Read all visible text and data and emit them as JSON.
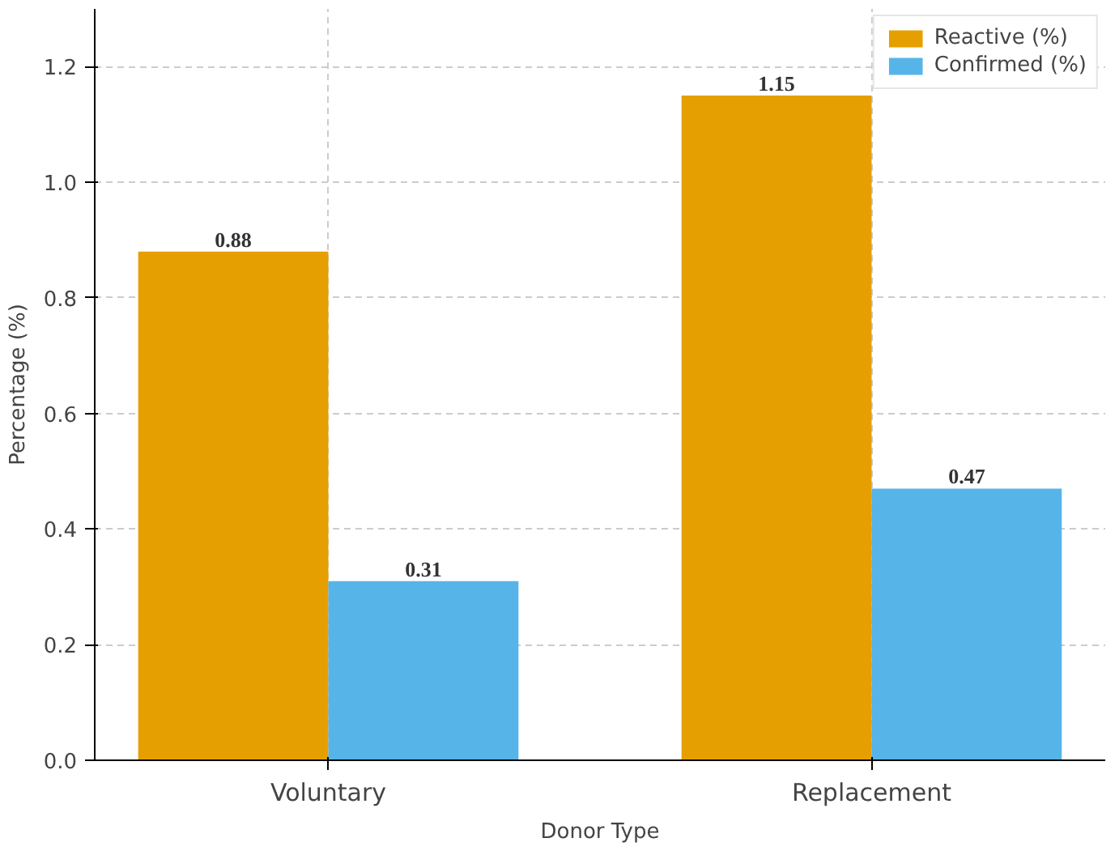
{
  "chart_data": {
    "type": "bar",
    "xlabel": "Donor Type",
    "ylabel": "Percentage (%)",
    "categories": [
      "Voluntary",
      "Replacement"
    ],
    "series": [
      {
        "name": "Reactive (%)",
        "color": "#e69f00",
        "values": [
          0.88,
          1.15
        ]
      },
      {
        "name": "Confirmed (%)",
        "color": "#56b4e9",
        "values": [
          0.31,
          0.47
        ]
      }
    ],
    "ylim": [
      0,
      1.3
    ],
    "yticks": [
      {
        "value": 0,
        "label": "0.0"
      },
      {
        "value": 0.2,
        "label": "0.2"
      },
      {
        "value": 0.4,
        "label": "0.4"
      },
      {
        "value": 0.6,
        "label": "0.6"
      },
      {
        "value": 0.8,
        "label": "0.8"
      },
      {
        "value": 1.0,
        "label": "1.0"
      },
      {
        "value": 1.2,
        "label": "1.2"
      }
    ],
    "data_labels": true,
    "grid": true,
    "legend": "top right"
  }
}
